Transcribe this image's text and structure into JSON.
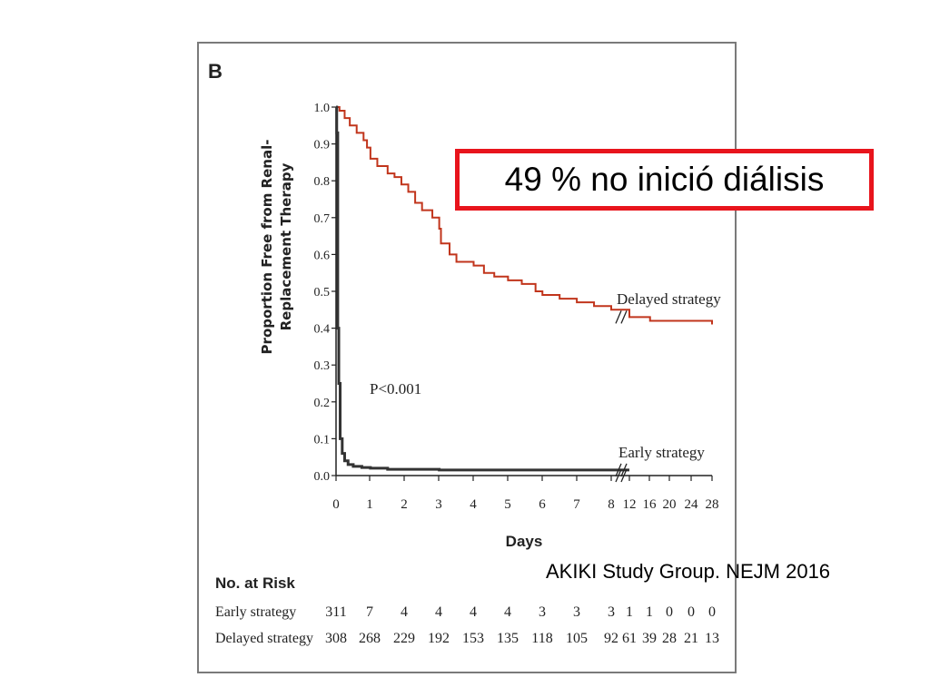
{
  "panel_label": "B",
  "callout": {
    "text": "49 % no inició diálisis"
  },
  "citation": "AKIKI Study Group. NEJM 2016",
  "colors": {
    "early": "#333333",
    "delayed": "#c1351c",
    "callout_border": "#e8141c"
  },
  "chart_data": {
    "type": "line",
    "title": "",
    "ylabel_line1": "Proportion Free from Renal-",
    "ylabel_line2": "Replacement Therapy",
    "xlabel": "Days",
    "ylim": [
      0,
      1
    ],
    "yticks": [
      "0.0",
      "0.1",
      "0.2",
      "0.3",
      "0.4",
      "0.5",
      "0.6",
      "0.7",
      "0.8",
      "0.9",
      "1.0"
    ],
    "xticks": [
      "0",
      "1",
      "2",
      "3",
      "4",
      "5",
      "6",
      "7",
      "8",
      "12",
      "16",
      "20",
      "24",
      "28"
    ],
    "axis_break": "between 8 and 12",
    "annotation": "P<0.001",
    "series": [
      {
        "name": "Delayed strategy",
        "x": [
          0,
          0.1,
          0.25,
          0.4,
          0.6,
          0.8,
          0.9,
          1.0,
          1.2,
          1.5,
          1.7,
          1.9,
          2.1,
          2.3,
          2.5,
          2.8,
          3.0,
          3.05,
          3.3,
          3.5,
          4.0,
          4.3,
          4.6,
          5.0,
          5.4,
          5.8,
          6.0,
          6.5,
          7.0,
          7.5,
          8.0,
          12,
          16,
          28
        ],
        "y": [
          1.0,
          0.99,
          0.97,
          0.95,
          0.93,
          0.91,
          0.89,
          0.86,
          0.84,
          0.82,
          0.81,
          0.79,
          0.77,
          0.74,
          0.72,
          0.7,
          0.67,
          0.63,
          0.6,
          0.58,
          0.57,
          0.55,
          0.54,
          0.53,
          0.52,
          0.5,
          0.49,
          0.48,
          0.47,
          0.46,
          0.45,
          0.43,
          0.42,
          0.41
        ]
      },
      {
        "name": "Early strategy",
        "x": [
          0,
          0.02,
          0.05,
          0.08,
          0.12,
          0.18,
          0.25,
          0.35,
          0.5,
          0.75,
          1.0,
          1.5,
          3,
          8,
          12,
          28
        ],
        "y": [
          1.0,
          0.93,
          0.4,
          0.25,
          0.1,
          0.06,
          0.04,
          0.03,
          0.025,
          0.022,
          0.02,
          0.017,
          0.015,
          0.015,
          0.015,
          0.015
        ]
      }
    ],
    "risk_table": {
      "title": "No. at Risk",
      "rows": [
        {
          "label": "Early strategy",
          "values": [
            "311",
            "7",
            "4",
            "4",
            "4",
            "4",
            "3",
            "3",
            "3",
            "1",
            "1",
            "0",
            "0",
            "0"
          ]
        },
        {
          "label": "Delayed strategy",
          "values": [
            "308",
            "268",
            "229",
            "192",
            "153",
            "135",
            "118",
            "105",
            "92",
            "61",
            "39",
            "28",
            "21",
            "13"
          ]
        }
      ]
    }
  }
}
